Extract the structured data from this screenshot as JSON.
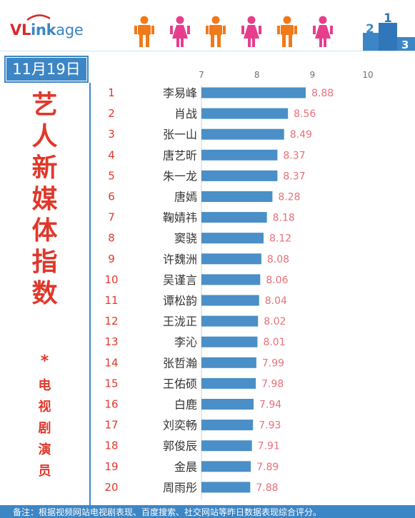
{
  "brand": {
    "part1": "VL",
    "part2": "ink",
    "part3": "age"
  },
  "podium_numbers": [
    "2",
    "1",
    "3"
  ],
  "date": "11月19日",
  "title_chars": [
    "艺",
    "人",
    "新",
    "媒",
    "体",
    "指",
    "数"
  ],
  "title_asterisk": "*",
  "subtitle_chars": [
    "电",
    "视",
    "剧",
    "演",
    "员"
  ],
  "footer_note": "备注：根据视频网站电视剧表现、百度搜索、社交网站等昨日数据表现综合评分。",
  "colors": {
    "bar": "#4a8fc7",
    "rank": "#e0382b",
    "value": "#e8707a",
    "accent": "#3d86c6",
    "male": "#f07a1a",
    "female": "#e63e8c"
  },
  "chart_data": {
    "type": "bar",
    "orientation": "horizontal",
    "xlim": [
      7,
      10
    ],
    "ticks": [
      7,
      8,
      9,
      10
    ],
    "ranks": [
      "1",
      "2",
      "3",
      "4",
      "5",
      "6",
      "7",
      "8",
      "9",
      "10",
      "11",
      "12",
      "13",
      "14",
      "15",
      "16",
      "17",
      "18",
      "19",
      "20"
    ],
    "categories": [
      "李易峰",
      "肖战",
      "张一山",
      "唐艺昕",
      "朱一龙",
      "唐嫣",
      "鞠婧祎",
      "窦骁",
      "许魏洲",
      "吴谨言",
      "谭松韵",
      "王泷正",
      "李沁",
      "张哲瀚",
      "王佑硕",
      "白鹿",
      "刘奕畅",
      "郭俊辰",
      "金晨",
      "周雨彤"
    ],
    "values": [
      8.88,
      8.56,
      8.49,
      8.37,
      8.37,
      8.28,
      8.18,
      8.12,
      8.08,
      8.06,
      8.04,
      8.02,
      8.01,
      7.99,
      7.98,
      7.94,
      7.93,
      7.91,
      7.89,
      7.88
    ],
    "value_labels": [
      "8.88",
      "8.56",
      "8.49",
      "8.37",
      "8.37",
      "8.28",
      "8.18",
      "8.12",
      "8.08",
      "8.06",
      "8.04",
      "8.02",
      "8.01",
      "7.99",
      "7.98",
      "7.94",
      "7.93",
      "7.91",
      "7.89",
      "7.88"
    ],
    "grid": false
  }
}
